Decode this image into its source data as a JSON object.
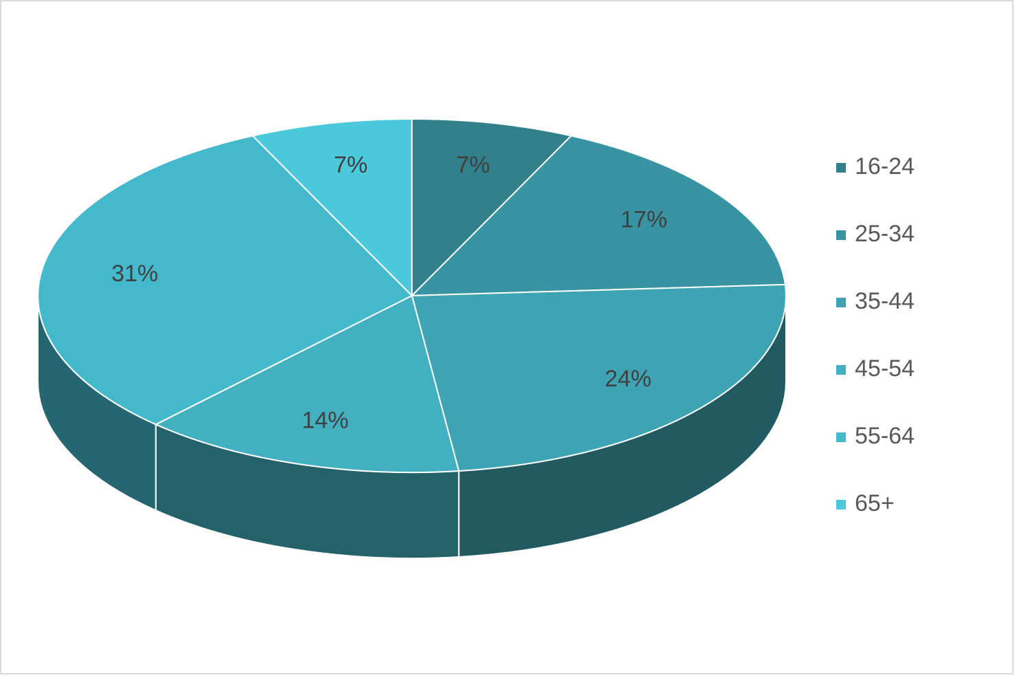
{
  "chart_data": {
    "type": "pie",
    "categories": [
      "16-24",
      "25-34",
      "35-44",
      "45-54",
      "55-64",
      "65+"
    ],
    "values": [
      7,
      17,
      24,
      14,
      31,
      7
    ],
    "value_labels": [
      "7%",
      "17%",
      "24%",
      "14%",
      "31%",
      "7%"
    ],
    "colors": [
      "#31808c",
      "#3894a3",
      "#3ea3b2",
      "#43b0c2",
      "#45b9cc",
      "#4bc9db"
    ],
    "legend": "right"
  }
}
